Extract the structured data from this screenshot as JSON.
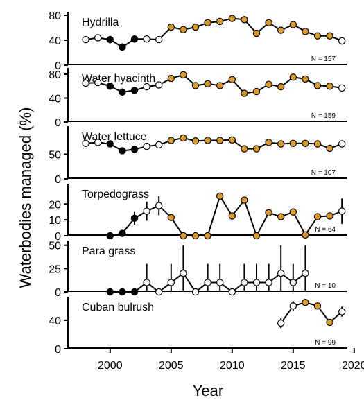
{
  "chart_data": {
    "type": "line",
    "xlabel": "Year",
    "ylabel": "Waterbodies managed (%)",
    "xlim": [
      1997,
      2020
    ],
    "xticks": [
      2000,
      2005,
      2010,
      2015,
      2020
    ],
    "colors": {
      "orange": "#d99a2b",
      "white": "#ffffff",
      "black": "#000000"
    },
    "panels": [
      {
        "name": "Hydrilla",
        "n_label": "N =  157",
        "ylim": [
          0,
          80
        ],
        "yticks": [
          0,
          40,
          80
        ],
        "points": [
          {
            "x": 1998,
            "y": 41,
            "err": 4,
            "fill": "white"
          },
          {
            "x": 1999,
            "y": 44,
            "err": 5,
            "fill": "white"
          },
          {
            "x": 2000,
            "y": 41,
            "err": 6,
            "fill": "black"
          },
          {
            "x": 2001,
            "y": 29,
            "err": 6,
            "fill": "black"
          },
          {
            "x": 2002,
            "y": 42,
            "err": 6,
            "fill": "black"
          },
          {
            "x": 2003,
            "y": 42,
            "err": 5,
            "fill": "white"
          },
          {
            "x": 2004,
            "y": 41,
            "err": 4,
            "fill": "white"
          },
          {
            "x": 2005,
            "y": 61,
            "err": 0,
            "fill": "orange"
          },
          {
            "x": 2006,
            "y": 57,
            "err": 0,
            "fill": "orange"
          },
          {
            "x": 2007,
            "y": 61,
            "err": 0,
            "fill": "orange"
          },
          {
            "x": 2008,
            "y": 68,
            "err": 0,
            "fill": "orange"
          },
          {
            "x": 2009,
            "y": 70,
            "err": 0,
            "fill": "orange"
          },
          {
            "x": 2010,
            "y": 75,
            "err": 0,
            "fill": "orange"
          },
          {
            "x": 2011,
            "y": 73,
            "err": 0,
            "fill": "orange"
          },
          {
            "x": 2012,
            "y": 51,
            "err": 0,
            "fill": "orange"
          },
          {
            "x": 2013,
            "y": 68,
            "err": 0,
            "fill": "orange"
          },
          {
            "x": 2014,
            "y": 56,
            "err": 0,
            "fill": "orange"
          },
          {
            "x": 2015,
            "y": 65,
            "err": 0,
            "fill": "orange"
          },
          {
            "x": 2016,
            "y": 54,
            "err": 0,
            "fill": "orange"
          },
          {
            "x": 2017,
            "y": 47,
            "err": 0,
            "fill": "orange"
          },
          {
            "x": 2018,
            "y": 47,
            "err": 0,
            "fill": "orange"
          },
          {
            "x": 2019,
            "y": 39,
            "err": 6,
            "fill": "white"
          }
        ]
      },
      {
        "name": "Water hyacinth",
        "n_label": "N =  159",
        "ylim": [
          0,
          80
        ],
        "yticks": [
          0,
          40,
          80
        ],
        "points": [
          {
            "x": 1998,
            "y": 65,
            "err": 5,
            "fill": "white"
          },
          {
            "x": 1999,
            "y": 66,
            "err": 4,
            "fill": "white"
          },
          {
            "x": 2000,
            "y": 60,
            "err": 6,
            "fill": "black"
          },
          {
            "x": 2001,
            "y": 50,
            "err": 6,
            "fill": "black"
          },
          {
            "x": 2002,
            "y": 53,
            "err": 6,
            "fill": "black"
          },
          {
            "x": 2003,
            "y": 59,
            "err": 5,
            "fill": "white"
          },
          {
            "x": 2004,
            "y": 62,
            "err": 5,
            "fill": "white"
          },
          {
            "x": 2005,
            "y": 73,
            "err": 0,
            "fill": "orange"
          },
          {
            "x": 2006,
            "y": 79,
            "err": 0,
            "fill": "orange"
          },
          {
            "x": 2007,
            "y": 61,
            "err": 0,
            "fill": "orange"
          },
          {
            "x": 2008,
            "y": 64,
            "err": 0,
            "fill": "orange"
          },
          {
            "x": 2009,
            "y": 61,
            "err": 0,
            "fill": "orange"
          },
          {
            "x": 2010,
            "y": 71,
            "err": 0,
            "fill": "orange"
          },
          {
            "x": 2011,
            "y": 48,
            "err": 0,
            "fill": "orange"
          },
          {
            "x": 2012,
            "y": 51,
            "err": 0,
            "fill": "orange"
          },
          {
            "x": 2013,
            "y": 63,
            "err": 0,
            "fill": "orange"
          },
          {
            "x": 2014,
            "y": 59,
            "err": 0,
            "fill": "orange"
          },
          {
            "x": 2015,
            "y": 75,
            "err": 0,
            "fill": "orange"
          },
          {
            "x": 2016,
            "y": 72,
            "err": 0,
            "fill": "orange"
          },
          {
            "x": 2017,
            "y": 61,
            "err": 0,
            "fill": "orange"
          },
          {
            "x": 2018,
            "y": 60,
            "err": 0,
            "fill": "orange"
          },
          {
            "x": 2019,
            "y": 57,
            "err": 5,
            "fill": "white"
          }
        ]
      },
      {
        "name": "Water lettuce",
        "n_label": "N =  107",
        "ylim": [
          0,
          90
        ],
        "yticks": [
          0,
          50
        ],
        "points": [
          {
            "x": 1998,
            "y": 72,
            "err": 6,
            "fill": "white"
          },
          {
            "x": 1999,
            "y": 74,
            "err": 4,
            "fill": "white"
          },
          {
            "x": 2000,
            "y": 71,
            "err": 6,
            "fill": "black"
          },
          {
            "x": 2001,
            "y": 57,
            "err": 7,
            "fill": "black"
          },
          {
            "x": 2002,
            "y": 60,
            "err": 6,
            "fill": "black"
          },
          {
            "x": 2003,
            "y": 66,
            "err": 5,
            "fill": "white"
          },
          {
            "x": 2004,
            "y": 69,
            "err": 5,
            "fill": "white"
          },
          {
            "x": 2005,
            "y": 78,
            "err": 0,
            "fill": "orange"
          },
          {
            "x": 2006,
            "y": 83,
            "err": 0,
            "fill": "orange"
          },
          {
            "x": 2007,
            "y": 77,
            "err": 0,
            "fill": "orange"
          },
          {
            "x": 2008,
            "y": 78,
            "err": 0,
            "fill": "orange"
          },
          {
            "x": 2009,
            "y": 78,
            "err": 0,
            "fill": "orange"
          },
          {
            "x": 2010,
            "y": 79,
            "err": 0,
            "fill": "orange"
          },
          {
            "x": 2011,
            "y": 61,
            "err": 0,
            "fill": "orange"
          },
          {
            "x": 2012,
            "y": 61,
            "err": 0,
            "fill": "orange"
          },
          {
            "x": 2013,
            "y": 74,
            "err": 0,
            "fill": "orange"
          },
          {
            "x": 2014,
            "y": 71,
            "err": 0,
            "fill": "orange"
          },
          {
            "x": 2015,
            "y": 72,
            "err": 0,
            "fill": "orange"
          },
          {
            "x": 2016,
            "y": 72,
            "err": 0,
            "fill": "orange"
          },
          {
            "x": 2017,
            "y": 71,
            "err": 0,
            "fill": "orange"
          },
          {
            "x": 2018,
            "y": 62,
            "err": 0,
            "fill": "orange"
          },
          {
            "x": 2019,
            "y": 71,
            "err": 6,
            "fill": "white"
          }
        ]
      },
      {
        "name": "Torpedograss",
        "n_label": "N =  64",
        "ylim": [
          0,
          28
        ],
        "yticks": [
          0,
          10,
          20
        ],
        "points": [
          {
            "x": 2000,
            "y": 0,
            "err": 0,
            "fill": "black"
          },
          {
            "x": 2001,
            "y": 1.5,
            "err": 2,
            "fill": "black"
          },
          {
            "x": 2002,
            "y": 11,
            "err": 4,
            "fill": "black"
          },
          {
            "x": 2003,
            "y": 15.5,
            "err": 6,
            "fill": "white"
          },
          {
            "x": 2004,
            "y": 19,
            "err": 6,
            "fill": "white"
          },
          {
            "x": 2005,
            "y": 11.5,
            "err": 0,
            "fill": "orange"
          },
          {
            "x": 2006,
            "y": 0,
            "err": 0,
            "fill": "orange"
          },
          {
            "x": 2007,
            "y": 0,
            "err": 0,
            "fill": "orange"
          },
          {
            "x": 2008,
            "y": 0,
            "err": 0,
            "fill": "orange"
          },
          {
            "x": 2009,
            "y": 25,
            "err": 0,
            "fill": "orange"
          },
          {
            "x": 2010,
            "y": 12.5,
            "err": 0,
            "fill": "orange"
          },
          {
            "x": 2011,
            "y": 22.5,
            "err": 0,
            "fill": "orange"
          },
          {
            "x": 2012,
            "y": 0,
            "err": 0,
            "fill": "orange"
          },
          {
            "x": 2013,
            "y": 14.5,
            "err": 0,
            "fill": "orange"
          },
          {
            "x": 2014,
            "y": 12,
            "err": 0,
            "fill": "orange"
          },
          {
            "x": 2015,
            "y": 15,
            "err": 0,
            "fill": "orange"
          },
          {
            "x": 2016,
            "y": 0.5,
            "err": 0,
            "fill": "orange"
          },
          {
            "x": 2017,
            "y": 12,
            "err": 0,
            "fill": "orange"
          },
          {
            "x": 2018,
            "y": 12.5,
            "err": 0,
            "fill": "orange"
          },
          {
            "x": 2019,
            "y": 15.5,
            "err": 8,
            "fill": "white"
          }
        ]
      },
      {
        "name": "Para grass",
        "n_label": "N =  10",
        "ylim": [
          0,
          52
        ],
        "yticks": [
          0,
          25,
          50
        ],
        "points": [
          {
            "x": 2000,
            "y": 0,
            "err": 0,
            "fill": "black"
          },
          {
            "x": 2001,
            "y": 0,
            "err": 0,
            "fill": "black"
          },
          {
            "x": 2002,
            "y": 0,
            "err": 0,
            "fill": "black"
          },
          {
            "x": 2003,
            "y": 10,
            "err": 20,
            "fill": "white"
          },
          {
            "x": 2004,
            "y": 0,
            "err": 0,
            "fill": "white"
          },
          {
            "x": 2005,
            "y": 10,
            "err": 20,
            "fill": "white"
          },
          {
            "x": 2006,
            "y": 20,
            "err": 30,
            "fill": "white"
          },
          {
            "x": 2007,
            "y": 0,
            "err": 0,
            "fill": "white"
          },
          {
            "x": 2008,
            "y": 10,
            "err": 20,
            "fill": "white"
          },
          {
            "x": 2009,
            "y": 10,
            "err": 20,
            "fill": "white"
          },
          {
            "x": 2010,
            "y": 0,
            "err": 0,
            "fill": "white"
          },
          {
            "x": 2011,
            "y": 10,
            "err": 20,
            "fill": "white"
          },
          {
            "x": 2012,
            "y": 10,
            "err": 20,
            "fill": "white"
          },
          {
            "x": 2013,
            "y": 10,
            "err": 20,
            "fill": "white"
          },
          {
            "x": 2014,
            "y": 20,
            "err": 30,
            "fill": "white"
          },
          {
            "x": 2015,
            "y": 10,
            "err": 20,
            "fill": "white"
          },
          {
            "x": 2016,
            "y": 20,
            "err": 30,
            "fill": "white"
          }
        ]
      },
      {
        "name": "Cuban bulrush",
        "n_label": "N =  99",
        "ylim": [
          0,
          72
        ],
        "yticks": [
          0,
          40
        ],
        "points": [
          {
            "x": 2014,
            "y": 36,
            "err": 7,
            "fill": "white"
          },
          {
            "x": 2015,
            "y": 60,
            "err": 7,
            "fill": "white"
          },
          {
            "x": 2016,
            "y": 65,
            "err": 0,
            "fill": "orange"
          },
          {
            "x": 2017,
            "y": 60,
            "err": 0,
            "fill": "orange"
          },
          {
            "x": 2018,
            "y": 37,
            "err": 0,
            "fill": "orange"
          },
          {
            "x": 2019,
            "y": 52,
            "err": 7,
            "fill": "white"
          }
        ]
      }
    ]
  }
}
